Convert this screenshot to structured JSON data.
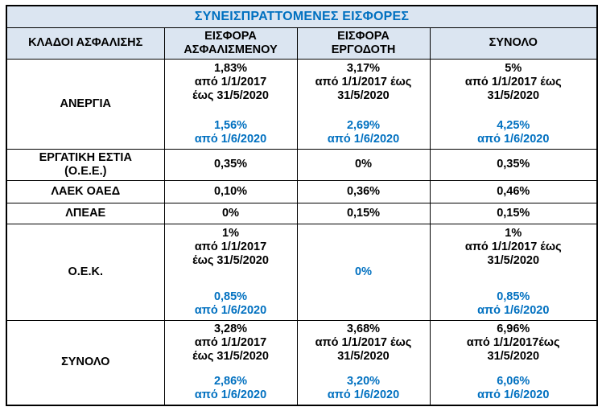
{
  "title": "ΣΥΝΕΙΣΠΡΑΤΤΟΜΕΝΕΣ ΕΙΣΦΟΡΕΣ",
  "colors": {
    "accent_blue": "#0070C0",
    "header_bg": "#DBE5F1",
    "border_black": "#000000"
  },
  "header": {
    "columns": [
      "ΚΛΑΔΟΙ ΑΣΦΑΛΙΣΗΣ",
      [
        "ΕΙΣΦΟΡΑ",
        "ΑΣΦΑΛΙΣΜΕΝΟΥ"
      ],
      [
        "ΕΙΣΦΟΡΑ",
        "ΕΡΓΟΔΟΤΗ"
      ],
      "ΣΥΝΟΛΟ"
    ]
  },
  "rows": [
    {
      "label": "ΑΝΕΡΓΙΑ",
      "insured": {
        "primary": [
          "1,83%",
          "από 1/1/2017",
          "έως 31/5/2020"
        ],
        "secondary": [
          "1,56%",
          "από 1/6/2020"
        ]
      },
      "employer": {
        "primary": [
          "3,17%",
          "από 1/1/2017 έως",
          "31/5/2020"
        ],
        "secondary": [
          "2,69%",
          "από 1/6/2020"
        ]
      },
      "total": {
        "primary": [
          "5%",
          "από 1/1/2017 έως",
          "31/5/2020"
        ],
        "secondary": [
          "4,25%",
          "από 1/6/2020"
        ]
      }
    },
    {
      "label": [
        "ΕΡΓΑΤΙΚΗ ΕΣΤΙΑ",
        "(Ο.Ε.Ε.)"
      ],
      "insured": "0,35%",
      "employer": "0%",
      "total": "0,35%"
    },
    {
      "label": "ΛΑΕΚ ΟΑΕΔ",
      "insured": "0,10%",
      "employer": "0,36%",
      "total": "0,46%"
    },
    {
      "label": "ΛΠΕΑΕ",
      "insured": "0%",
      "employer": "0,15%",
      "total": "0,15%"
    },
    {
      "label": "Ο.Ε.Κ.",
      "insured": {
        "primary": [
          "1%",
          "από 1/1/2017",
          "έως 31/5/2020"
        ],
        "secondary": [
          "0,85%",
          "από 1/6/2020"
        ]
      },
      "employer": "0%",
      "total": {
        "primary": [
          "1%",
          "από 1/1/2017 έως",
          "31/5/2020"
        ],
        "secondary": [
          "0,85%",
          "από 1/6/2020"
        ]
      }
    },
    {
      "label": "ΣΥΝΟΛΟ",
      "insured": {
        "primary": [
          "3,28%",
          "από 1/1/2017",
          "έως 31/5/2020"
        ],
        "secondary": [
          "2,86%",
          "από 1/6/2020"
        ]
      },
      "employer": {
        "primary": [
          "3,68%",
          "από 1/1/2017 έως",
          "31/5/2020"
        ],
        "secondary": [
          "3,20%",
          "από 1/6/2020"
        ]
      },
      "total": {
        "primary": [
          "6,96%",
          "από 1/1/2017έως",
          "31/5/2020"
        ],
        "secondary": [
          "6,06%",
          "από 1/6/2020"
        ]
      }
    }
  ]
}
